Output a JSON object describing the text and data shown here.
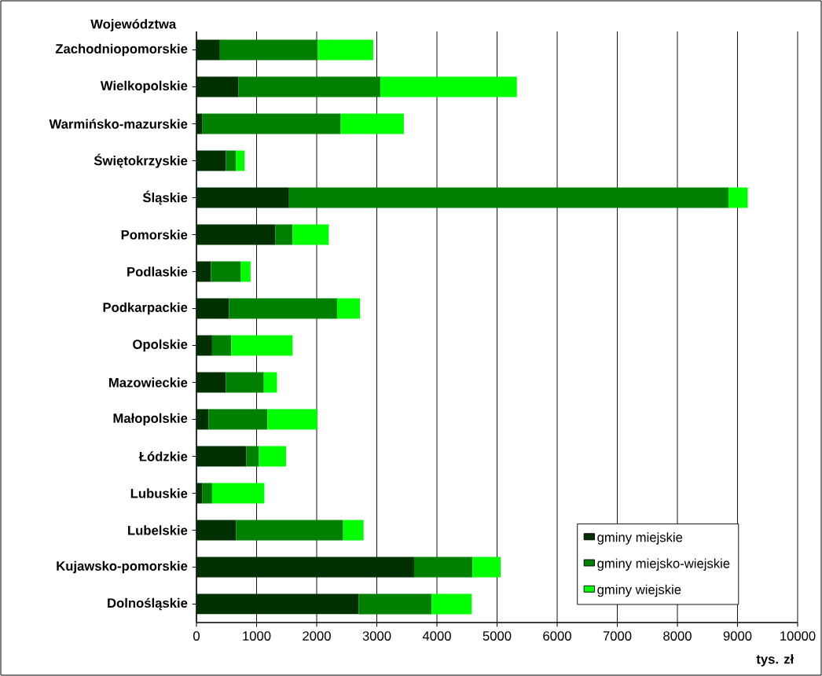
{
  "chart_data": {
    "type": "bar",
    "orientation": "horizontal",
    "stacked": true,
    "ylabel": "Województwa",
    "xlabel": "tys. zł",
    "categories": [
      "Zachodniopomorskie",
      "Wielkopolskie",
      "Warmińsko-mazurskie",
      "Świętokrzyskie",
      "Śląskie",
      "Pomorskie",
      "Podlaskie",
      "Podkarpackie",
      "Opolskie",
      "Mazowieckie",
      "Małopolskie",
      "Łódzkie",
      "Lubuskie",
      "Lubelskie",
      "Kujawsko-pomorskie",
      "Dolnośląskie"
    ],
    "series": [
      {
        "name": "gminy miejskie",
        "color": "#003000",
        "values": [
          390,
          700,
          100,
          490,
          1540,
          1310,
          240,
          540,
          260,
          490,
          200,
          830,
          100,
          660,
          3620,
          2700
        ]
      },
      {
        "name": "gminy miejsko-wiejskie",
        "color": "#008000",
        "values": [
          1630,
          2360,
          2300,
          170,
          7310,
          290,
          500,
          1800,
          320,
          630,
          980,
          210,
          160,
          1780,
          970,
          1210
        ]
      },
      {
        "name": "gminy wiejskie",
        "color": "#00ff00",
        "values": [
          920,
          2270,
          1050,
          140,
          320,
          600,
          160,
          380,
          1020,
          220,
          830,
          450,
          870,
          340,
          470,
          670
        ]
      }
    ],
    "xlim": [
      0,
      10000
    ],
    "xticks": [
      0,
      1000,
      2000,
      3000,
      4000,
      5000,
      6000,
      7000,
      8000,
      9000,
      10000
    ],
    "grid": "x",
    "legend": "bottom right"
  }
}
